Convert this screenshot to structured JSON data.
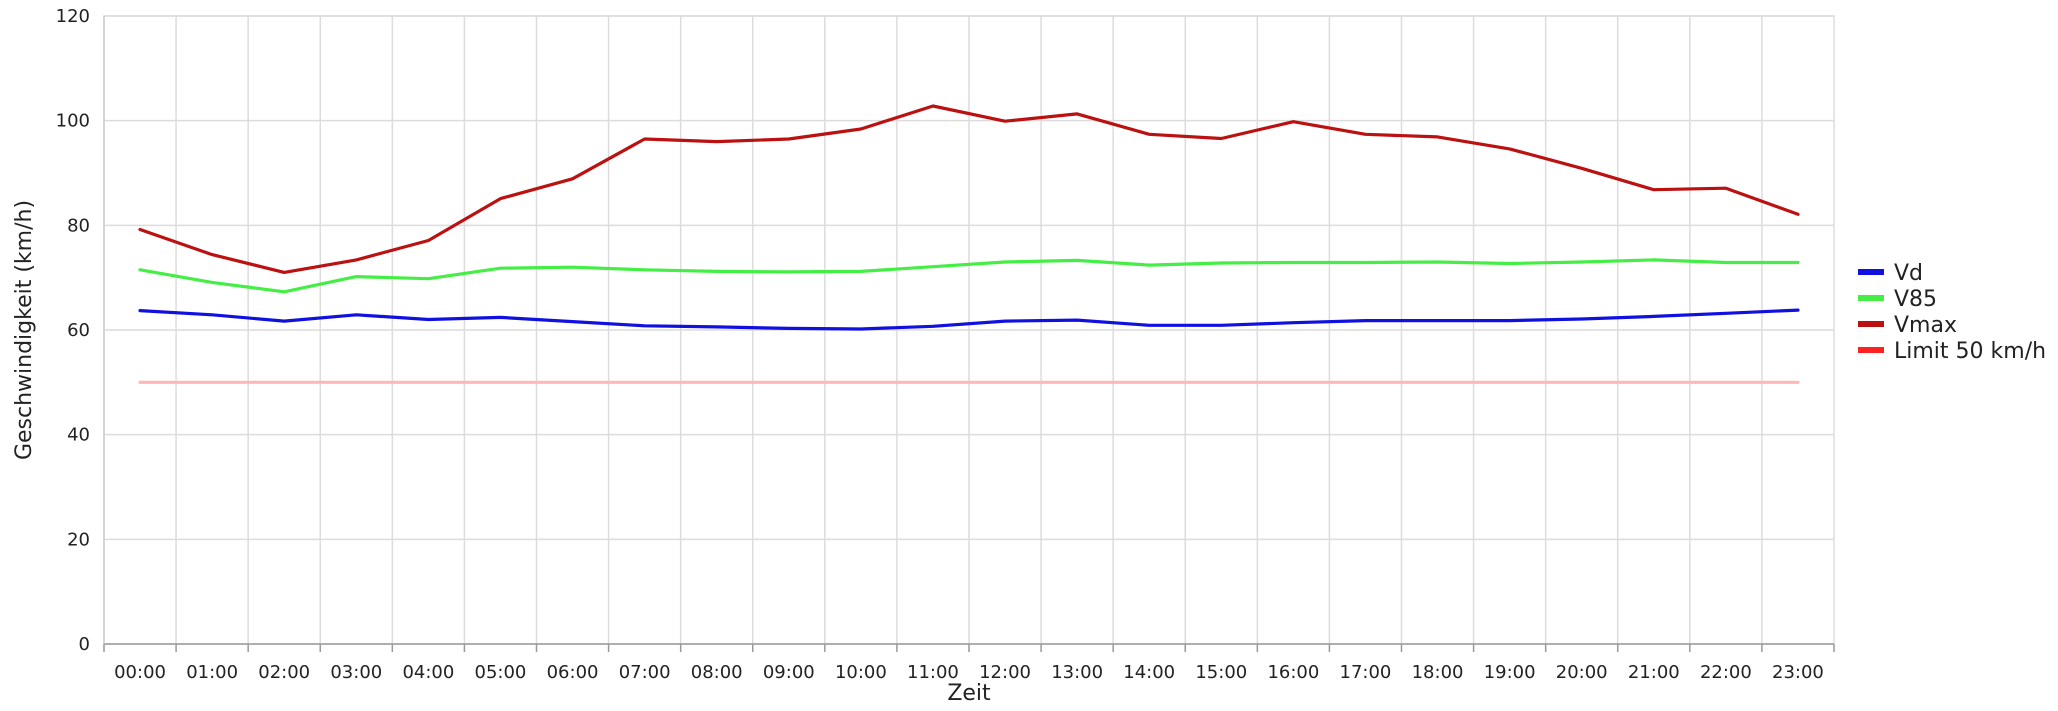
{
  "chart_data": {
    "type": "line",
    "xlabel": "Zeit",
    "ylabel": "Geschwindigkeit (km/h)",
    "ylim": [
      0,
      120
    ],
    "yticks": [
      0,
      20,
      40,
      60,
      80,
      100,
      120
    ],
    "grid": true,
    "legend_position": "right",
    "categories": [
      "00:00",
      "01:00",
      "02:00",
      "03:00",
      "04:00",
      "05:00",
      "06:00",
      "07:00",
      "08:00",
      "09:00",
      "10:00",
      "11:00",
      "12:00",
      "13:00",
      "14:00",
      "15:00",
      "16:00",
      "17:00",
      "18:00",
      "19:00",
      "20:00",
      "21:00",
      "22:00",
      "23:00"
    ],
    "series": [
      {
        "name": "Vd",
        "color": "#1010e0",
        "values": [
          63.7,
          62.9,
          61.7,
          62.9,
          62.0,
          62.4,
          61.6,
          60.8,
          60.6,
          60.3,
          60.2,
          60.7,
          61.7,
          61.9,
          60.9,
          60.9,
          61.4,
          61.8,
          61.8,
          61.8,
          62.1,
          62.6,
          63.2,
          63.8
        ]
      },
      {
        "name": "V85",
        "color": "#44ee44",
        "values": [
          71.5,
          69.1,
          67.3,
          70.2,
          69.8,
          71.8,
          72.0,
          71.5,
          71.2,
          71.1,
          71.2,
          72.1,
          73.0,
          73.3,
          72.4,
          72.8,
          72.9,
          72.9,
          73.0,
          72.7,
          73.0,
          73.4,
          72.9,
          72.9
        ]
      },
      {
        "name": "Vmax",
        "color": "#bb1111",
        "values": [
          79.2,
          74.4,
          71.0,
          73.4,
          77.1,
          85.1,
          88.9,
          96.5,
          96.0,
          96.5,
          98.4,
          102.8,
          99.9,
          101.3,
          97.4,
          96.6,
          99.8,
          97.4,
          96.9,
          94.6,
          90.9,
          86.8,
          87.1,
          82.1
        ]
      },
      {
        "name": "Limit 50 km/h",
        "color": "#ff2222",
        "plot_color": "#ffb8b8",
        "values": [
          50,
          50,
          50,
          50,
          50,
          50,
          50,
          50,
          50,
          50,
          50,
          50,
          50,
          50,
          50,
          50,
          50,
          50,
          50,
          50,
          50,
          50,
          50,
          50
        ]
      }
    ]
  }
}
